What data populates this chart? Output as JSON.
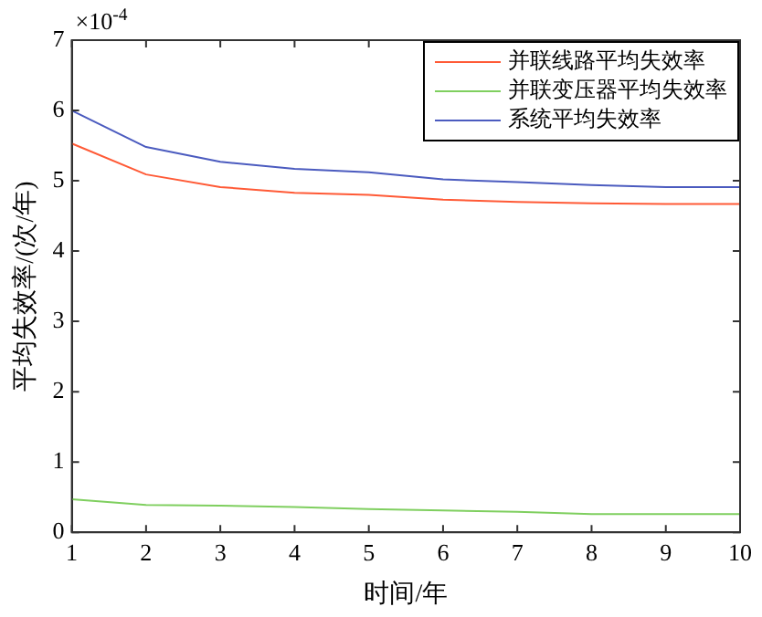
{
  "chart_data": {
    "type": "line",
    "xlabel": "时间/年",
    "ylabel": "平均失效率/(次/年)",
    "annotations": [
      "×10$^{-4}$"
    ],
    "x": [
      1,
      2,
      3,
      4,
      5,
      6,
      7,
      8,
      9,
      10
    ],
    "series": [
      {
        "name": "并联线路平均失效率",
        "color": "#ff5a36",
        "values": [
          5.53,
          5.09,
          4.91,
          4.83,
          4.8,
          4.73,
          4.7,
          4.68,
          4.67,
          4.67
        ]
      },
      {
        "name": "并联变压器平均失效率",
        "color": "#7fcf5f",
        "values": [
          0.47,
          0.39,
          0.38,
          0.36,
          0.33,
          0.31,
          0.29,
          0.26,
          0.26,
          0.26
        ]
      },
      {
        "name": "系统平均失效率",
        "color": "#4b5bbf",
        "values": [
          6.0,
          5.48,
          5.27,
          5.17,
          5.12,
          5.02,
          4.98,
          4.94,
          4.91,
          4.91
        ]
      }
    ],
    "xlim": [
      1,
      10
    ],
    "xticks": [
      1,
      2,
      3,
      4,
      5,
      6,
      7,
      8,
      9,
      10
    ],
    "ylim": [
      0,
      7
    ],
    "yticks": [
      0,
      1,
      2,
      3,
      4,
      5,
      6,
      7
    ],
    "grid": false,
    "legend": "top right",
    "marker": "none",
    "line_style": "solid"
  }
}
